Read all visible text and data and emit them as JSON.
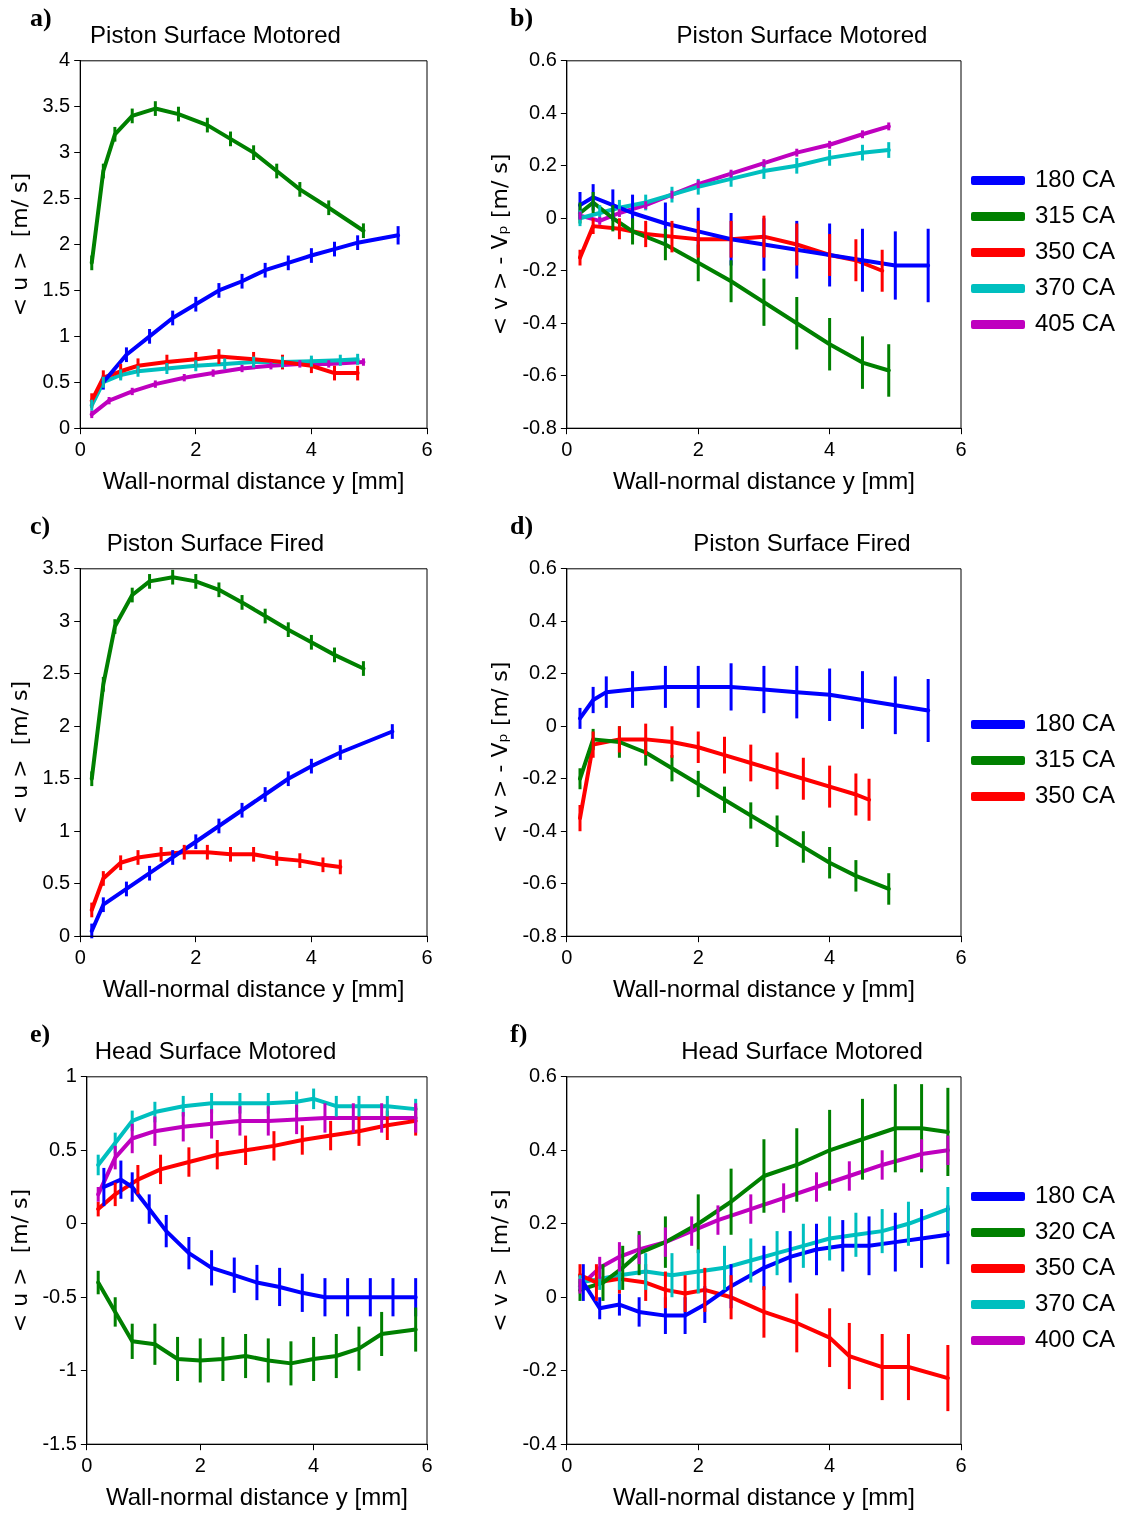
{
  "chart_data": [
    {
      "type": "line",
      "title": "Piston Surface Motored",
      "xlabel": "Wall-normal distance y [mm]",
      "ylabel": "< u >  [m/ s]",
      "annotations": [
        "a)"
      ],
      "xlim": [
        0,
        6
      ],
      "xticks": [
        0,
        2,
        4,
        6
      ],
      "ylim": [
        0,
        4
      ],
      "yticks": [
        0,
        0.5,
        1,
        1.5,
        2,
        2.5,
        3,
        3.5,
        4
      ],
      "grid": false,
      "legend": false,
      "series": [
        {
          "color": "#0000ff",
          "x": [
            0.4,
            0.8,
            1.2,
            1.6,
            2,
            2.4,
            2.8,
            3.2,
            3.6,
            4,
            4.4,
            4.8,
            5.5
          ],
          "values": [
            0.5,
            0.8,
            1.0,
            1.2,
            1.35,
            1.5,
            1.6,
            1.72,
            1.8,
            1.88,
            1.95,
            2.02,
            2.1
          ],
          "errors": [
            0.08,
            0.08,
            0.08,
            0.08,
            0.08,
            0.08,
            0.08,
            0.08,
            0.08,
            0.08,
            0.08,
            0.08,
            0.1
          ]
        },
        {
          "color": "#008000",
          "x": [
            0.2,
            0.4,
            0.6,
            0.9,
            1.3,
            1.7,
            2.2,
            2.6,
            3,
            3.4,
            3.8,
            4.3,
            4.9
          ],
          "values": [
            1.8,
            2.8,
            3.2,
            3.4,
            3.48,
            3.42,
            3.3,
            3.15,
            3.0,
            2.8,
            2.6,
            2.4,
            2.15
          ],
          "errors": [
            0.08,
            0.08,
            0.08,
            0.08,
            0.08,
            0.08,
            0.08,
            0.08,
            0.08,
            0.08,
            0.08,
            0.08,
            0.08
          ]
        },
        {
          "color": "#ff0000",
          "x": [
            0.2,
            0.4,
            0.7,
            1,
            1.5,
            2,
            2.4,
            3,
            3.5,
            4,
            4.4,
            4.8
          ],
          "values": [
            0.3,
            0.55,
            0.62,
            0.68,
            0.72,
            0.75,
            0.78,
            0.75,
            0.72,
            0.68,
            0.6,
            0.6
          ],
          "errors": [
            0.08,
            0.08,
            0.08,
            0.08,
            0.08,
            0.08,
            0.08,
            0.08,
            0.08,
            0.08,
            0.08,
            0.08
          ]
        },
        {
          "color": "#00bfbf",
          "x": [
            0.2,
            0.4,
            0.7,
            1,
            1.5,
            2,
            2.5,
            3,
            3.5,
            4,
            4.5,
            4.8
          ],
          "values": [
            0.25,
            0.5,
            0.58,
            0.62,
            0.65,
            0.68,
            0.7,
            0.72,
            0.72,
            0.73,
            0.74,
            0.75
          ],
          "errors": [
            0.06,
            0.06,
            0.06,
            0.06,
            0.06,
            0.06,
            0.06,
            0.06,
            0.06,
            0.06,
            0.06,
            0.06
          ]
        },
        {
          "color": "#bf00bf",
          "x": [
            0.2,
            0.5,
            0.9,
            1.3,
            1.8,
            2.3,
            2.8,
            3.3,
            3.8,
            4.3,
            4.9
          ],
          "values": [
            0.15,
            0.3,
            0.4,
            0.48,
            0.55,
            0.6,
            0.65,
            0.68,
            0.7,
            0.7,
            0.72
          ],
          "errors": [
            0.04,
            0.04,
            0.04,
            0.04,
            0.04,
            0.04,
            0.04,
            0.04,
            0.04,
            0.04,
            0.04
          ]
        }
      ]
    },
    {
      "type": "line",
      "title": "Piston Surface Motored",
      "xlabel": "Wall-normal distance y [mm]",
      "ylabel": "< v > - Vₚ [m/ s]",
      "annotations": [
        "b)"
      ],
      "xlim": [
        0,
        6
      ],
      "xticks": [
        0,
        2,
        4,
        6
      ],
      "ylim": [
        -0.8,
        0.6
      ],
      "yticks": [
        -0.8,
        -0.6,
        -0.4,
        -0.2,
        0,
        0.2,
        0.4,
        0.6
      ],
      "grid": false,
      "legend": "right",
      "series": [
        {
          "name": "180 CA",
          "color": "#0000ff",
          "x": [
            0.2,
            0.4,
            0.7,
            1,
            1.5,
            2,
            2.5,
            3,
            3.5,
            4,
            4.5,
            5,
            5.5
          ],
          "values": [
            0.05,
            0.08,
            0.05,
            0.02,
            -0.02,
            -0.05,
            -0.08,
            -0.1,
            -0.12,
            -0.14,
            -0.16,
            -0.18,
            -0.18
          ],
          "errors": [
            0.05,
            0.05,
            0.06,
            0.07,
            0.08,
            0.09,
            0.1,
            0.1,
            0.11,
            0.12,
            0.12,
            0.13,
            0.14
          ]
        },
        {
          "name": "315 CA",
          "color": "#008000",
          "x": [
            0.2,
            0.4,
            0.7,
            1,
            1.5,
            2,
            2.5,
            3,
            3.5,
            4,
            4.5,
            4.9
          ],
          "values": [
            0.02,
            0.06,
            0.0,
            -0.05,
            -0.1,
            -0.17,
            -0.24,
            -0.32,
            -0.4,
            -0.48,
            -0.55,
            -0.58
          ],
          "errors": [
            0.04,
            0.04,
            0.05,
            0.05,
            0.06,
            0.07,
            0.08,
            0.09,
            0.1,
            0.1,
            0.1,
            0.1
          ]
        },
        {
          "name": "350 CA",
          "color": "#ff0000",
          "x": [
            0.2,
            0.4,
            0.8,
            1.2,
            1.6,
            2,
            2.5,
            3,
            3.5,
            4,
            4.4,
            4.8
          ],
          "values": [
            -0.15,
            -0.03,
            -0.04,
            -0.06,
            -0.07,
            -0.08,
            -0.08,
            -0.07,
            -0.1,
            -0.14,
            -0.16,
            -0.2
          ],
          "errors": [
            0.03,
            0.03,
            0.04,
            0.05,
            0.06,
            0.07,
            0.07,
            0.08,
            0.08,
            0.08,
            0.08,
            0.08
          ]
        },
        {
          "name": "370 CA",
          "color": "#00bfbf",
          "x": [
            0.2,
            0.5,
            0.8,
            1.2,
            1.6,
            2,
            2.5,
            3,
            3.5,
            4,
            4.5,
            4.9
          ],
          "values": [
            0.0,
            0.02,
            0.04,
            0.06,
            0.09,
            0.12,
            0.15,
            0.18,
            0.2,
            0.23,
            0.25,
            0.26
          ],
          "errors": [
            0.03,
            0.03,
            0.03,
            0.03,
            0.03,
            0.03,
            0.03,
            0.03,
            0.03,
            0.03,
            0.03,
            0.03
          ]
        },
        {
          "name": "405 CA",
          "color": "#bf00bf",
          "x": [
            0.2,
            0.5,
            0.8,
            1.2,
            1.6,
            2,
            2.5,
            3,
            3.5,
            4,
            4.5,
            4.9
          ],
          "values": [
            0.01,
            -0.01,
            0.02,
            0.05,
            0.09,
            0.13,
            0.17,
            0.21,
            0.25,
            0.28,
            0.32,
            0.35
          ],
          "errors": [
            0.015,
            0.015,
            0.015,
            0.015,
            0.015,
            0.015,
            0.015,
            0.015,
            0.015,
            0.015,
            0.015,
            0.015
          ]
        }
      ]
    },
    {
      "type": "line",
      "title": "Piston Surface Fired",
      "xlabel": "Wall-normal distance y [mm]",
      "ylabel": "< u >  [m/ s]",
      "annotations": [
        "c)"
      ],
      "xlim": [
        0,
        6
      ],
      "xticks": [
        0,
        2,
        4,
        6
      ],
      "ylim": [
        0,
        3.5
      ],
      "yticks": [
        0,
        0.5,
        1,
        1.5,
        2,
        2.5,
        3,
        3.5
      ],
      "grid": false,
      "legend": false,
      "series": [
        {
          "color": "#0000ff",
          "x": [
            0.2,
            0.4,
            0.8,
            1.2,
            1.6,
            2,
            2.4,
            2.8,
            3.2,
            3.6,
            4,
            4.5,
            5.4
          ],
          "values": [
            0.05,
            0.3,
            0.45,
            0.6,
            0.75,
            0.9,
            1.05,
            1.2,
            1.35,
            1.5,
            1.62,
            1.75,
            1.95
          ],
          "errors": [
            0.07,
            0.07,
            0.07,
            0.07,
            0.07,
            0.07,
            0.07,
            0.07,
            0.07,
            0.07,
            0.07,
            0.07,
            0.07
          ]
        },
        {
          "color": "#008000",
          "x": [
            0.2,
            0.4,
            0.6,
            0.9,
            1.2,
            1.6,
            2,
            2.4,
            2.8,
            3.2,
            3.6,
            4,
            4.4,
            4.9
          ],
          "values": [
            1.5,
            2.4,
            2.95,
            3.25,
            3.38,
            3.42,
            3.38,
            3.3,
            3.18,
            3.05,
            2.92,
            2.8,
            2.68,
            2.55
          ],
          "errors": [
            0.07,
            0.07,
            0.07,
            0.07,
            0.07,
            0.07,
            0.07,
            0.07,
            0.07,
            0.07,
            0.07,
            0.07,
            0.07,
            0.07
          ]
        },
        {
          "color": "#ff0000",
          "x": [
            0.2,
            0.4,
            0.7,
            1,
            1.4,
            1.8,
            2.2,
            2.6,
            3,
            3.4,
            3.8,
            4.2,
            4.5
          ],
          "values": [
            0.25,
            0.55,
            0.7,
            0.75,
            0.78,
            0.8,
            0.8,
            0.78,
            0.78,
            0.74,
            0.72,
            0.68,
            0.66
          ],
          "errors": [
            0.07,
            0.07,
            0.07,
            0.07,
            0.07,
            0.07,
            0.07,
            0.07,
            0.07,
            0.07,
            0.07,
            0.07,
            0.07
          ]
        }
      ]
    },
    {
      "type": "line",
      "title": "Piston Surface Fired",
      "xlabel": "Wall-normal distance y [mm]",
      "ylabel": "< v > - Vₚ [m/ s]",
      "annotations": [
        "d)"
      ],
      "xlim": [
        0,
        6
      ],
      "xticks": [
        0,
        2,
        4,
        6
      ],
      "ylim": [
        -0.8,
        0.6
      ],
      "yticks": [
        -0.8,
        -0.6,
        -0.4,
        -0.2,
        0,
        0.2,
        0.4,
        0.6
      ],
      "grid": false,
      "legend": "right",
      "series": [
        {
          "name": "180 CA",
          "color": "#0000ff",
          "x": [
            0.2,
            0.4,
            0.6,
            1,
            1.5,
            2,
            2.5,
            3,
            3.5,
            4,
            4.5,
            5,
            5.5
          ],
          "values": [
            0.03,
            0.1,
            0.13,
            0.14,
            0.15,
            0.15,
            0.15,
            0.14,
            0.13,
            0.12,
            0.1,
            0.08,
            0.06
          ],
          "errors": [
            0.04,
            0.05,
            0.06,
            0.07,
            0.08,
            0.08,
            0.09,
            0.09,
            0.1,
            0.1,
            0.11,
            0.11,
            0.12
          ]
        },
        {
          "name": "315 CA",
          "color": "#008000",
          "x": [
            0.2,
            0.4,
            0.8,
            1.2,
            1.6,
            2,
            2.4,
            2.8,
            3.2,
            3.6,
            4,
            4.4,
            4.9
          ],
          "values": [
            -0.2,
            -0.05,
            -0.06,
            -0.1,
            -0.16,
            -0.22,
            -0.28,
            -0.34,
            -0.4,
            -0.46,
            -0.52,
            -0.57,
            -0.62
          ],
          "errors": [
            0.04,
            0.04,
            0.06,
            0.05,
            0.05,
            0.05,
            0.05,
            0.05,
            0.06,
            0.06,
            0.06,
            0.06,
            0.06
          ]
        },
        {
          "name": "350 CA",
          "color": "#ff0000",
          "x": [
            0.2,
            0.4,
            0.8,
            1.2,
            1.6,
            2,
            2.4,
            2.8,
            3.2,
            3.6,
            4,
            4.4,
            4.6
          ],
          "values": [
            -0.35,
            -0.07,
            -0.05,
            -0.05,
            -0.06,
            -0.08,
            -0.11,
            -0.14,
            -0.17,
            -0.2,
            -0.23,
            -0.26,
            -0.28
          ],
          "errors": [
            0.05,
            0.05,
            0.05,
            0.06,
            0.06,
            0.06,
            0.07,
            0.07,
            0.07,
            0.08,
            0.08,
            0.08,
            0.08
          ]
        }
      ]
    },
    {
      "type": "line",
      "title": "Head Surface Motored",
      "xlabel": "Wall-normal distance y [mm]",
      "ylabel": "< u >  [m/ s]",
      "annotations": [
        "e)"
      ],
      "xlim": [
        0,
        6
      ],
      "xticks": [
        0,
        2,
        4,
        6
      ],
      "ylim": [
        -1.5,
        1
      ],
      "yticks": [
        -1.5,
        -1,
        -0.5,
        0,
        0.5,
        1
      ],
      "grid": false,
      "legend": false,
      "series": [
        {
          "color": "#0000ff",
          "x": [
            0.3,
            0.6,
            0.8,
            1.1,
            1.4,
            1.8,
            2.2,
            2.6,
            3,
            3.4,
            3.8,
            4.2,
            4.6,
            5,
            5.4,
            5.8
          ],
          "values": [
            0.25,
            0.3,
            0.25,
            0.1,
            -0.05,
            -0.2,
            -0.3,
            -0.35,
            -0.4,
            -0.43,
            -0.47,
            -0.5,
            -0.5,
            -0.5,
            -0.5,
            -0.5
          ],
          "errors": [
            0.13,
            0.13,
            0.1,
            0.1,
            0.11,
            0.11,
            0.12,
            0.12,
            0.12,
            0.13,
            0.13,
            0.13,
            0.13,
            0.13,
            0.13,
            0.13
          ]
        },
        {
          "color": "#008000",
          "x": [
            0.2,
            0.5,
            0.8,
            1.2,
            1.6,
            2,
            2.4,
            2.8,
            3.2,
            3.6,
            4,
            4.4,
            4.8,
            5.2,
            5.8
          ],
          "values": [
            -0.4,
            -0.6,
            -0.8,
            -0.82,
            -0.92,
            -0.93,
            -0.92,
            -0.9,
            -0.93,
            -0.95,
            -0.92,
            -0.9,
            -0.85,
            -0.75,
            -0.72
          ],
          "errors": [
            0.08,
            0.1,
            0.12,
            0.14,
            0.15,
            0.15,
            0.15,
            0.15,
            0.15,
            0.15,
            0.15,
            0.15,
            0.15,
            0.15,
            0.15
          ]
        },
        {
          "color": "#ff0000",
          "x": [
            0.2,
            0.5,
            0.9,
            1.3,
            1.8,
            2.3,
            2.8,
            3.3,
            3.8,
            4.3,
            4.8,
            5.3,
            5.8
          ],
          "values": [
            0.1,
            0.2,
            0.3,
            0.37,
            0.42,
            0.47,
            0.5,
            0.53,
            0.57,
            0.6,
            0.63,
            0.67,
            0.7
          ],
          "errors": [
            0.05,
            0.08,
            0.1,
            0.1,
            0.1,
            0.1,
            0.1,
            0.1,
            0.1,
            0.1,
            0.1,
            0.1,
            0.1
          ]
        },
        {
          "color": "#00bfbf",
          "x": [
            0.2,
            0.5,
            0.8,
            1.2,
            1.7,
            2.2,
            2.7,
            3.2,
            3.7,
            4,
            4.4,
            4.8,
            5.3,
            5.8
          ],
          "values": [
            0.4,
            0.55,
            0.7,
            0.76,
            0.8,
            0.82,
            0.82,
            0.82,
            0.83,
            0.85,
            0.8,
            0.8,
            0.8,
            0.78
          ],
          "errors": [
            0.07,
            0.07,
            0.07,
            0.07,
            0.07,
            0.07,
            0.07,
            0.07,
            0.07,
            0.07,
            0.07,
            0.07,
            0.07,
            0.07
          ]
        },
        {
          "color": "#bf00bf",
          "x": [
            0.2,
            0.5,
            0.8,
            1.2,
            1.7,
            2.2,
            2.7,
            3.2,
            3.7,
            4.2,
            4.7,
            5.2,
            5.8
          ],
          "values": [
            0.2,
            0.45,
            0.58,
            0.63,
            0.66,
            0.68,
            0.7,
            0.7,
            0.71,
            0.72,
            0.72,
            0.72,
            0.72
          ],
          "errors": [
            0.05,
            0.08,
            0.1,
            0.1,
            0.1,
            0.1,
            0.1,
            0.1,
            0.1,
            0.1,
            0.1,
            0.1,
            0.1
          ]
        }
      ]
    },
    {
      "type": "line",
      "title": "Head Surface Motored",
      "xlabel": "Wall-normal distance y [mm]",
      "ylabel": "< v >  [m/ s]",
      "annotations": [
        "f)"
      ],
      "xlim": [
        0,
        6
      ],
      "xticks": [
        0,
        2,
        4,
        6
      ],
      "ylim": [
        -0.4,
        0.6
      ],
      "yticks": [
        -0.4,
        -0.2,
        0,
        0.2,
        0.4,
        0.6
      ],
      "grid": false,
      "legend": "right",
      "series": [
        {
          "name": "180 CA",
          "color": "#0000ff",
          "x": [
            0.25,
            0.5,
            0.8,
            1.1,
            1.5,
            1.8,
            2.1,
            2.5,
            3,
            3.4,
            3.8,
            4.2,
            4.6,
            5,
            5.4,
            5.8
          ],
          "values": [
            0.04,
            -0.03,
            -0.02,
            -0.04,
            -0.05,
            -0.05,
            -0.02,
            0.03,
            0.08,
            0.11,
            0.13,
            0.14,
            0.14,
            0.15,
            0.16,
            0.17
          ],
          "errors": [
            0.05,
            0.03,
            0.03,
            0.04,
            0.05,
            0.05,
            0.05,
            0.06,
            0.06,
            0.07,
            0.07,
            0.07,
            0.08,
            0.08,
            0.08,
            0.08
          ]
        },
        {
          "name": "320 CA",
          "color": "#008000",
          "x": [
            0.2,
            0.55,
            0.85,
            1.1,
            1.5,
            2,
            2.5,
            3,
            3.5,
            4,
            4.5,
            5,
            5.4,
            5.8
          ],
          "values": [
            0.02,
            0.04,
            0.08,
            0.12,
            0.15,
            0.2,
            0.26,
            0.33,
            0.36,
            0.4,
            0.43,
            0.46,
            0.46,
            0.45
          ],
          "errors": [
            0.03,
            0.05,
            0.06,
            0.06,
            0.07,
            0.08,
            0.09,
            0.1,
            0.1,
            0.11,
            0.11,
            0.12,
            0.12,
            0.12
          ]
        },
        {
          "name": "350 CA",
          "color": "#ff0000",
          "x": [
            0.2,
            0.45,
            0.8,
            1.2,
            1.5,
            1.8,
            2.1,
            2.5,
            3,
            3.5,
            4,
            4.3,
            4.8,
            5.2,
            5.8
          ],
          "values": [
            0.06,
            0.04,
            0.05,
            0.04,
            0.02,
            0.01,
            0.02,
            0.0,
            -0.04,
            -0.07,
            -0.11,
            -0.16,
            -0.19,
            -0.19,
            -0.22
          ],
          "errors": [
            0.03,
            0.05,
            0.04,
            0.05,
            0.05,
            0.05,
            0.06,
            0.06,
            0.07,
            0.08,
            0.08,
            0.09,
            0.09,
            0.09,
            0.09
          ]
        },
        {
          "name": "370 CA",
          "color": "#00bfbf",
          "x": [
            0.2,
            0.5,
            0.8,
            1.2,
            1.6,
            2,
            2.4,
            2.8,
            3.2,
            3.6,
            4,
            4.4,
            4.8,
            5.2,
            5.8
          ],
          "values": [
            0.04,
            0.05,
            0.06,
            0.07,
            0.06,
            0.07,
            0.08,
            0.1,
            0.12,
            0.14,
            0.16,
            0.17,
            0.18,
            0.2,
            0.24
          ],
          "errors": [
            0.02,
            0.03,
            0.04,
            0.05,
            0.06,
            0.06,
            0.06,
            0.06,
            0.06,
            0.06,
            0.06,
            0.06,
            0.06,
            0.06,
            0.06
          ]
        },
        {
          "name": "400 CA",
          "color": "#bf00bf",
          "x": [
            0.2,
            0.5,
            0.8,
            1.1,
            1.5,
            1.9,
            2.3,
            2.8,
            3.3,
            3.8,
            4.3,
            4.8,
            5.4,
            5.8
          ],
          "values": [
            0.03,
            0.08,
            0.11,
            0.13,
            0.15,
            0.18,
            0.21,
            0.24,
            0.27,
            0.3,
            0.33,
            0.36,
            0.39,
            0.4
          ],
          "errors": [
            0.02,
            0.03,
            0.04,
            0.04,
            0.04,
            0.04,
            0.04,
            0.04,
            0.04,
            0.04,
            0.04,
            0.04,
            0.04,
            0.04
          ]
        }
      ]
    }
  ]
}
